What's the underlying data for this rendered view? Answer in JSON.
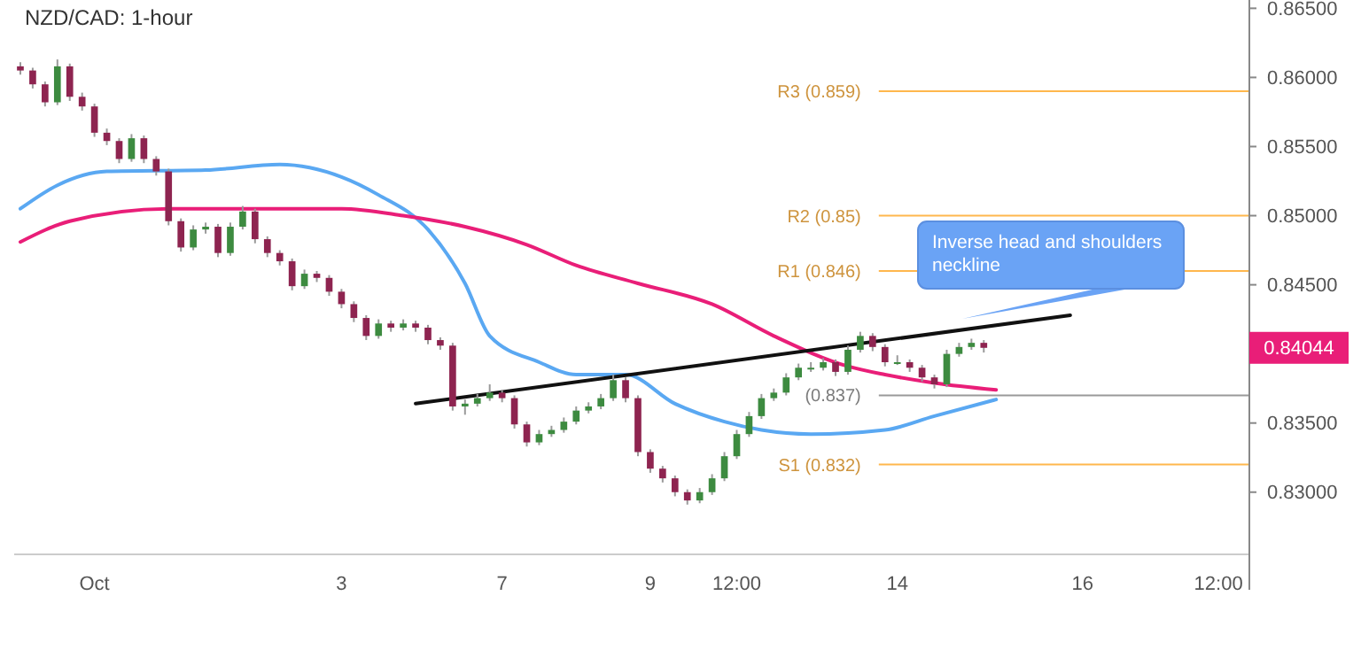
{
  "chart_data": {
    "type": "candlestick",
    "title": "NZD/CAD: 1-hour",
    "categories": [
      null,
      null,
      null,
      null,
      null,
      null,
      "Oct",
      null,
      null,
      null,
      null,
      null,
      null,
      null,
      null,
      null,
      null,
      null,
      null,
      null,
      null,
      null,
      null,
      null,
      null,
      null,
      "3",
      null,
      null,
      null,
      null,
      null,
      null,
      null,
      null,
      null,
      null,
      null,
      null,
      "7",
      null,
      null,
      null,
      null,
      null,
      null,
      null,
      null,
      null,
      null,
      null,
      "9",
      null,
      null,
      null,
      null,
      null,
      null,
      "12:00",
      null,
      null,
      null,
      null,
      null,
      null,
      null,
      null,
      null,
      null,
      null,
      null,
      "14",
      null,
      null,
      null,
      null,
      null,
      null,
      null,
      null,
      null,
      null,
      null,
      null,
      null,
      null,
      "16",
      null,
      null,
      null,
      null,
      null,
      null,
      null,
      null,
      null,
      null,
      "12:00",
      null,
      null
    ],
    "ylim": [
      0.8255,
      0.8656
    ],
    "yticks": [
      {
        "value": 0.83,
        "label": "0.83000"
      },
      {
        "value": 0.835,
        "label": "0.83500"
      },
      {
        "value": 0.84,
        "label": null
      },
      {
        "value": 0.845,
        "label": "0.84500"
      },
      {
        "value": 0.85,
        "label": "0.85000"
      },
      {
        "value": 0.855,
        "label": "0.85500"
      },
      {
        "value": 0.86,
        "label": "0.86000"
      },
      {
        "value": 0.865,
        "label": "0.86500"
      }
    ],
    "grid": false,
    "marker": "none",
    "series": [
      {
        "colors": [
          "#8e2450",
          "#8e2450",
          "#8e2450",
          "#3d8b40",
          "#8e2450",
          "#8e2450",
          "#8e2450",
          "#8e2450",
          "#8e2450",
          "#3d8b40",
          "#8e2450",
          "#8e2450",
          "#8e2450",
          "#8e2450",
          "#3d8b40",
          "#3d8b40",
          "#8e2450",
          "#3d8b40",
          "#3d8b40",
          "#8e2450",
          "#8e2450",
          "#8e2450",
          "#8e2450",
          "#3d8b40",
          "#8e2450",
          "#8e2450",
          "#8e2450",
          "#8e2450",
          "#8e2450",
          "#3d8b40",
          "#8e2450",
          "#3d8b40",
          "#8e2450",
          "#8e2450",
          "#8e2450",
          "#8e2450",
          "#3d8b40",
          "#3d8b40",
          "#3d8b40",
          "#8e2450",
          "#8e2450",
          "#8e2450",
          "#3d8b40",
          "#3d8b40",
          "#3d8b40",
          "#3d8b40",
          "#3d8b40",
          "#3d8b40",
          "#3d8b40",
          "#8e2450",
          "#8e2450",
          "#8e2450",
          "#8e2450",
          "#8e2450",
          "#8e2450",
          "#3d8b40",
          "#3d8b40",
          "#3d8b40",
          "#3d8b40",
          "#3d8b40",
          "#3d8b40",
          "#3d8b40",
          "#3d8b40",
          "#3d8b40",
          "#3d8b40",
          "#3d8b40",
          "#8e2450",
          "#3d8b40",
          "#3d8b40",
          "#8e2450",
          "#8e2450",
          "#3d8b40",
          "#8e2450",
          "#8e2450",
          "#8e2450",
          "#3d8b40",
          "#3d8b40",
          "#3d8b40",
          "#8e2450",
          null,
          null,
          null,
          null,
          null,
          null,
          null,
          null,
          null,
          null,
          null,
          null,
          null,
          null,
          null,
          null,
          null,
          null,
          null,
          null,
          null
        ],
        "ohlc": [
          [
            0.8608,
            0.8611,
            0.8602,
            0.8605
          ],
          [
            0.8605,
            0.8607,
            0.8592,
            0.8595
          ],
          [
            0.8595,
            0.8597,
            0.8579,
            0.8582
          ],
          [
            0.8582,
            0.8613,
            0.858,
            0.8608
          ],
          [
            0.8608,
            0.861,
            0.8583,
            0.8586
          ],
          [
            0.8586,
            0.8589,
            0.8576,
            0.8579
          ],
          [
            0.8579,
            0.8581,
            0.8557,
            0.856
          ],
          [
            0.856,
            0.8563,
            0.8551,
            0.8554
          ],
          [
            0.8554,
            0.8556,
            0.8538,
            0.8541
          ],
          [
            0.8541,
            0.8559,
            0.8539,
            0.8556
          ],
          [
            0.8556,
            0.8558,
            0.8538,
            0.8541
          ],
          [
            0.8541,
            0.8543,
            0.8529,
            0.8532
          ],
          [
            0.8532,
            0.8534,
            0.8493,
            0.8496
          ],
          [
            0.8496,
            0.8498,
            0.8474,
            0.8477
          ],
          [
            0.8477,
            0.8493,
            0.8475,
            0.849
          ],
          [
            0.849,
            0.8495,
            0.8487,
            0.8492
          ],
          [
            0.8492,
            0.8494,
            0.847,
            0.8473
          ],
          [
            0.8473,
            0.8495,
            0.8471,
            0.8492
          ],
          [
            0.8492,
            0.8507,
            0.849,
            0.8503
          ],
          [
            0.8503,
            0.8505,
            0.848,
            0.8483
          ],
          [
            0.8483,
            0.8485,
            0.847,
            0.8473
          ],
          [
            0.8473,
            0.8475,
            0.8464,
            0.8467
          ],
          [
            0.8467,
            0.8469,
            0.8446,
            0.8449
          ],
          [
            0.8449,
            0.8461,
            0.8447,
            0.8458
          ],
          [
            0.8458,
            0.846,
            0.8452,
            0.8455
          ],
          [
            0.8455,
            0.8457,
            0.8442,
            0.8445
          ],
          [
            0.8445,
            0.8447,
            0.8433,
            0.8436
          ],
          [
            0.8436,
            0.8438,
            0.8423,
            0.8426
          ],
          [
            0.8426,
            0.8428,
            0.841,
            0.8413
          ],
          [
            0.8413,
            0.8425,
            0.8411,
            0.8422
          ],
          [
            0.8422,
            0.8424,
            0.8416,
            0.8419
          ],
          [
            0.8419,
            0.8425,
            0.8417,
            0.8422
          ],
          [
            0.8422,
            0.8424,
            0.8416,
            0.8419
          ],
          [
            0.8419,
            0.8421,
            0.8407,
            0.841
          ],
          [
            0.841,
            0.8412,
            0.8403,
            0.8406
          ],
          [
            0.8406,
            0.8408,
            0.8359,
            0.8362
          ],
          [
            0.8362,
            0.8367,
            0.8356,
            0.8364
          ],
          [
            0.8364,
            0.8371,
            0.8362,
            0.8368
          ],
          [
            0.8368,
            0.8378,
            0.8366,
            0.8372
          ],
          [
            0.8372,
            0.8374,
            0.8365,
            0.8368
          ],
          [
            0.8368,
            0.837,
            0.8346,
            0.8349
          ],
          [
            0.8349,
            0.8351,
            0.8333,
            0.8336
          ],
          [
            0.8336,
            0.8345,
            0.8334,
            0.8342
          ],
          [
            0.8342,
            0.8348,
            0.834,
            0.8345
          ],
          [
            0.8345,
            0.8354,
            0.8343,
            0.8351
          ],
          [
            0.8351,
            0.8362,
            0.8349,
            0.8359
          ],
          [
            0.8359,
            0.8365,
            0.8357,
            0.8362
          ],
          [
            0.8362,
            0.8371,
            0.836,
            0.8368
          ],
          [
            0.8368,
            0.8385,
            0.8366,
            0.8381
          ],
          [
            0.8381,
            0.8383,
            0.8365,
            0.8368
          ],
          [
            0.8368,
            0.837,
            0.8326,
            0.8329
          ],
          [
            0.8329,
            0.8331,
            0.8314,
            0.8317
          ],
          [
            0.8317,
            0.8319,
            0.8307,
            0.831
          ],
          [
            0.831,
            0.8312,
            0.8297,
            0.83
          ],
          [
            0.83,
            0.8302,
            0.8291,
            0.8294
          ],
          [
            0.8294,
            0.8303,
            0.8292,
            0.83
          ],
          [
            0.83,
            0.8313,
            0.8298,
            0.831
          ],
          [
            0.831,
            0.8329,
            0.8308,
            0.8326
          ],
          [
            0.8326,
            0.8345,
            0.8324,
            0.8342
          ],
          [
            0.8342,
            0.8358,
            0.834,
            0.8355
          ],
          [
            0.8355,
            0.8371,
            0.8353,
            0.8368
          ],
          [
            0.8368,
            0.8375,
            0.8366,
            0.8372
          ],
          [
            0.8372,
            0.8386,
            0.837,
            0.8383
          ],
          [
            0.8383,
            0.8393,
            0.8381,
            0.839
          ],
          [
            0.839,
            0.8394,
            0.8387,
            0.839
          ],
          [
            0.839,
            0.8397,
            0.8388,
            0.8394
          ],
          [
            0.8394,
            0.8396,
            0.8384,
            0.8387
          ],
          [
            0.8387,
            0.8406,
            0.8385,
            0.8403
          ],
          [
            0.8403,
            0.8416,
            0.8401,
            0.8413
          ],
          [
            0.8413,
            0.8415,
            0.8402,
            0.8405
          ],
          [
            0.8405,
            0.8407,
            0.8391,
            0.8394
          ],
          [
            0.8394,
            0.8399,
            0.8392,
            0.8394
          ],
          [
            0.8394,
            0.8396,
            0.8387,
            0.839
          ],
          [
            0.839,
            0.8392,
            0.838,
            0.8383
          ],
          [
            0.8383,
            0.8385,
            0.8375,
            0.8378
          ],
          [
            0.8378,
            0.8403,
            0.8376,
            0.84
          ],
          [
            0.84,
            0.8408,
            0.8398,
            0.8405
          ],
          [
            0.8405,
            0.8411,
            0.8403,
            0.8408
          ],
          [
            0.8408,
            0.841,
            0.8401,
            0.84044
          ],
          null,
          null,
          null,
          null,
          null,
          null,
          null,
          null,
          null,
          null,
          null,
          null,
          null,
          null,
          null,
          null,
          null,
          null,
          null,
          null,
          null
        ]
      },
      {
        "type": "line",
        "color": "#5aa8f2",
        "values": [
          0.8505,
          null,
          null,
          0.8522,
          null,
          null,
          null,
          0.8532,
          null,
          null,
          null,
          null,
          null,
          null,
          null,
          0.8533,
          null,
          null,
          null,
          null,
          null,
          0.8537,
          null,
          null,
          null,
          null,
          0.8528,
          null,
          null,
          0.8515,
          null,
          null,
          null,
          0.849,
          null,
          null,
          0.8451,
          null,
          0.8413,
          null,
          null,
          null,
          0.8394,
          null,
          null,
          0.8385,
          null,
          null,
          null,
          0.8385,
          null,
          null,
          null,
          0.8364,
          null,
          null,
          null,
          0.8351,
          null,
          null,
          0.8345,
          null,
          null,
          null,
          0.8342,
          null,
          null,
          null,
          null,
          null,
          0.8345,
          null,
          null,
          null,
          0.8355,
          null,
          null,
          null,
          null,
          0.8367,
          null,
          null,
          null,
          null,
          null,
          null,
          null,
          null,
          null,
          null,
          null,
          null,
          null,
          null,
          null,
          null,
          null,
          null,
          null,
          null
        ]
      },
      {
        "type": "line",
        "color": "#e91e78",
        "values": [
          0.8481,
          null,
          null,
          null,
          0.8496,
          null,
          null,
          null,
          null,
          null,
          null,
          null,
          0.8505,
          null,
          null,
          null,
          null,
          null,
          null,
          null,
          0.8505,
          null,
          null,
          null,
          null,
          null,
          0.8505,
          null,
          null,
          null,
          null,
          0.85,
          null,
          null,
          null,
          null,
          0.8492,
          null,
          null,
          null,
          null,
          0.8479,
          null,
          null,
          null,
          0.8464,
          null,
          null,
          null,
          null,
          0.8451,
          null,
          null,
          null,
          null,
          null,
          0.8436,
          null,
          null,
          null,
          null,
          0.8413,
          null,
          null,
          null,
          null,
          null,
          0.8391,
          null,
          null,
          0.8385,
          null,
          null,
          null,
          0.8379,
          null,
          null,
          null,
          null,
          0.8374,
          null,
          null,
          null,
          null,
          null,
          null,
          null,
          null,
          null,
          null,
          null,
          null,
          null,
          null,
          null,
          null,
          null,
          null,
          null,
          null
        ]
      },
      {
        "type": "line",
        "color": "#111111",
        "values": [
          null,
          null,
          null,
          null,
          null,
          null,
          null,
          null,
          null,
          null,
          null,
          null,
          null,
          null,
          null,
          null,
          null,
          null,
          null,
          null,
          null,
          null,
          null,
          null,
          null,
          null,
          null,
          null,
          null,
          null,
          null,
          null,
          0.8364,
          null,
          null,
          null,
          null,
          null,
          null,
          null,
          null,
          null,
          null,
          null,
          null,
          null,
          null,
          null,
          null,
          null,
          null,
          null,
          null,
          null,
          null,
          null,
          null,
          null,
          null,
          null,
          null,
          null,
          null,
          null,
          null,
          null,
          null,
          null,
          null,
          null,
          null,
          null,
          null,
          null,
          null,
          null,
          null,
          null,
          null,
          null,
          null,
          null,
          null,
          null,
          null,
          0.8428,
          null,
          null,
          null,
          null,
          null,
          null,
          null,
          null,
          null,
          null,
          null,
          null,
          null,
          null
        ]
      }
    ],
    "ref_lines": [
      {
        "axis": "y",
        "value": 0.859,
        "label": "R3 (0.859)",
        "color": "#ffb74d"
      },
      {
        "axis": "y",
        "value": 0.85,
        "label": "R2 (0.85)",
        "color": "#ffb74d"
      },
      {
        "axis": "y",
        "value": 0.846,
        "label": "R1 (0.846)",
        "color": "#ffb74d"
      },
      {
        "axis": "y",
        "value": 0.837,
        "label": "(0.837)",
        "color": "#999999"
      },
      {
        "axis": "y",
        "value": 0.832,
        "label": "S1 (0.832)",
        "color": "#ffb74d"
      }
    ],
    "annotations": [
      "Inverse head and shoulders neckline",
      "0.84044"
    ]
  }
}
